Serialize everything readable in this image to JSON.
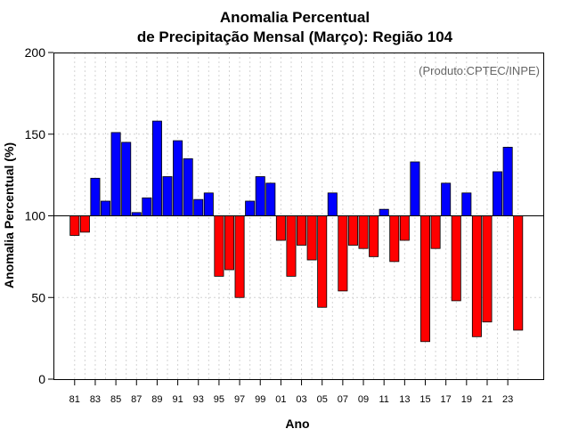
{
  "chart_data": {
    "type": "bar",
    "title_line1": "Anomalia Percentual",
    "title_line2": "de Precipitação Mensal (Março): Região 104",
    "xlabel": "Ano",
    "ylabel": "Anomalia Percentual (%)",
    "credit": "(Produto:CPTEC/INPE)",
    "baseline": 100,
    "ylim": [
      0,
      200
    ],
    "yticks": [
      0,
      50,
      100,
      150,
      200
    ],
    "colors": {
      "above": "#0000ff",
      "below": "#ff0000",
      "edge": "#000000",
      "grid": "#d3d3d3"
    },
    "categories": [
      "81",
      "82",
      "83",
      "84",
      "85",
      "86",
      "87",
      "88",
      "89",
      "90",
      "91",
      "92",
      "93",
      "94",
      "95",
      "96",
      "97",
      "98",
      "99",
      "00",
      "01",
      "02",
      "03",
      "04",
      "05",
      "06",
      "07",
      "08",
      "09",
      "10",
      "11",
      "12",
      "13",
      "14",
      "15",
      "16",
      "17",
      "18",
      "19",
      "20",
      "21",
      "22",
      "23",
      "24"
    ],
    "tick_labels": [
      "81",
      "83",
      "85",
      "87",
      "89",
      "91",
      "93",
      "95",
      "97",
      "99",
      "01",
      "03",
      "05",
      "07",
      "09",
      "11",
      "13",
      "15",
      "17",
      "19",
      "21",
      "23"
    ],
    "values": [
      88,
      90,
      123,
      109,
      151,
      145,
      102,
      111,
      158,
      124,
      146,
      135,
      110,
      114,
      63,
      67,
      50,
      109,
      124,
      120,
      85,
      63,
      82,
      73,
      44,
      114,
      54,
      82,
      80,
      75,
      104,
      72,
      85,
      133,
      23,
      80,
      120,
      48,
      114,
      26,
      35,
      127,
      142,
      30
    ]
  }
}
